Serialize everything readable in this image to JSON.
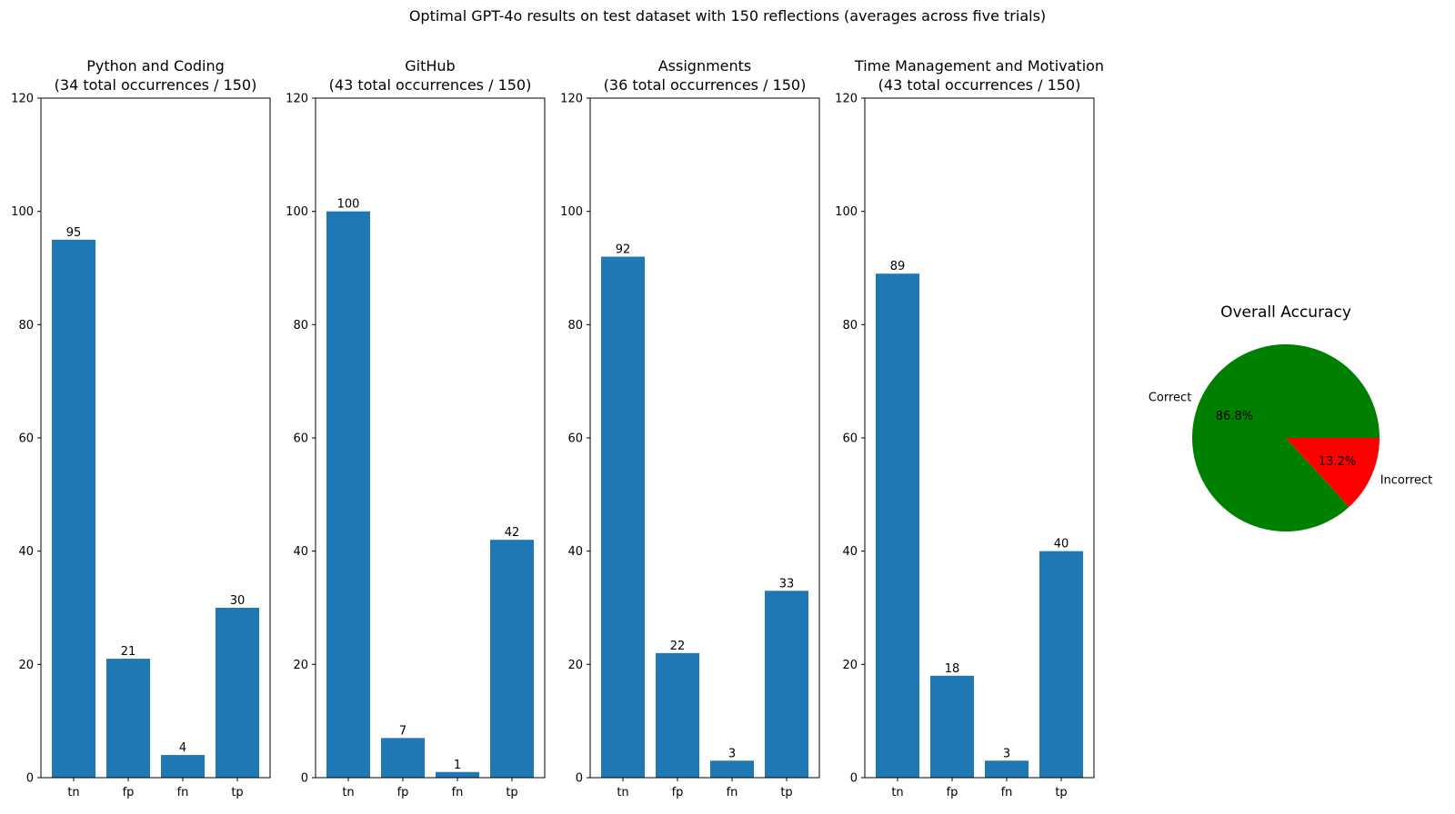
{
  "suptitle": "Optimal GPT-4o results on test dataset with 150 reflections (averages across five trials)",
  "chart_data": [
    {
      "type": "bar",
      "title": "Python and Coding\n(34 total occurrences / 150)",
      "categories": [
        "tn",
        "fp",
        "fn",
        "tp"
      ],
      "values": [
        95,
        21,
        4,
        30
      ],
      "ylim": [
        0,
        120
      ],
      "yticks": [
        0,
        20,
        40,
        60,
        80,
        100,
        120
      ],
      "color": "#1f77b4",
      "grid": false
    },
    {
      "type": "bar",
      "title": "GitHub\n(43 total occurrences / 150)",
      "categories": [
        "tn",
        "fp",
        "fn",
        "tp"
      ],
      "values": [
        100,
        7,
        1,
        42
      ],
      "ylim": [
        0,
        120
      ],
      "yticks": [
        0,
        20,
        40,
        60,
        80,
        100,
        120
      ],
      "color": "#1f77b4",
      "grid": false
    },
    {
      "type": "bar",
      "title": "Assignments\n(36 total occurrences / 150)",
      "categories": [
        "tn",
        "fp",
        "fn",
        "tp"
      ],
      "values": [
        92,
        22,
        3,
        33
      ],
      "ylim": [
        0,
        120
      ],
      "yticks": [
        0,
        20,
        40,
        60,
        80,
        100,
        120
      ],
      "color": "#1f77b4",
      "grid": false
    },
    {
      "type": "bar",
      "title": "Time Management and Motivation\n(43 total occurrences / 150)",
      "categories": [
        "tn",
        "fp",
        "fn",
        "tp"
      ],
      "values": [
        89,
        18,
        3,
        40
      ],
      "ylim": [
        0,
        120
      ],
      "yticks": [
        0,
        20,
        40,
        60,
        80,
        100,
        120
      ],
      "color": "#1f77b4",
      "grid": false
    },
    {
      "type": "pie",
      "title": "Overall Accuracy",
      "labels": [
        "Correct",
        "Incorrect"
      ],
      "values": [
        86.8,
        13.2
      ],
      "pct_labels": [
        "86.8%",
        "13.2%"
      ],
      "colors": [
        "#008000",
        "#ff0000"
      ]
    }
  ]
}
